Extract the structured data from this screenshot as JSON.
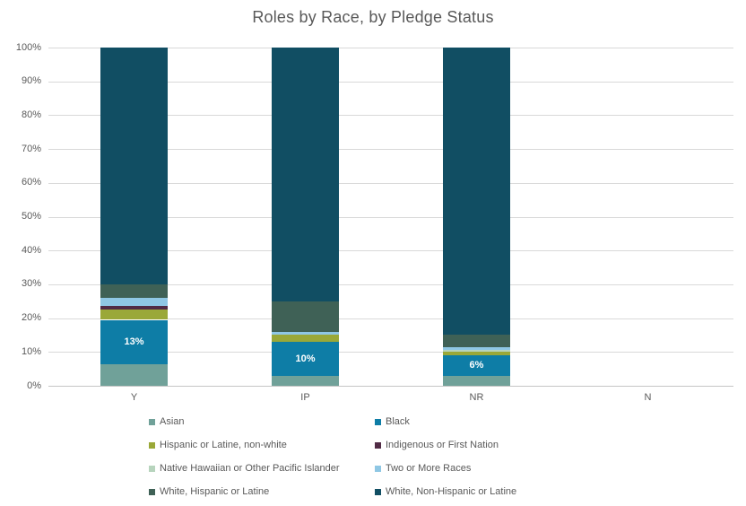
{
  "chart_data": {
    "type": "bar",
    "stacked": true,
    "percent_axis": true,
    "title": "Roles by Race, by Pledge Status",
    "xlabel": "",
    "ylabel": "",
    "categories": [
      "Y",
      "IP",
      "NR",
      "N"
    ],
    "y_axis": {
      "min": 0,
      "max": 100,
      "step": 10,
      "tick_labels": [
        "0%",
        "10%",
        "20%",
        "30%",
        "40%",
        "50%",
        "60%",
        "70%",
        "80%",
        "90%",
        "100%"
      ]
    },
    "gridlines": true,
    "legend_position": "bottom",
    "series": [
      {
        "name": "Asian",
        "color": "#70A199",
        "values": [
          6.5,
          3,
          3,
          0
        ]
      },
      {
        "name": "Black",
        "color": "#0E7DA6",
        "values": [
          13,
          10,
          6,
          0
        ],
        "data_labels": [
          "13%",
          "10%",
          "6%",
          ""
        ]
      },
      {
        "name": "Hispanic or Latine, non-white",
        "color": "#9AA838",
        "values": [
          3,
          2,
          1,
          0
        ]
      },
      {
        "name": "Indigenous or First Nation",
        "color": "#512B45",
        "values": [
          1,
          0,
          0,
          0
        ]
      },
      {
        "name": "Native Hawaiian or Other Pacific Islander",
        "color": "#B7D4BD",
        "values": [
          0,
          0,
          0.5,
          0
        ]
      },
      {
        "name": "Two or More Races",
        "color": "#8FC7E4",
        "values": [
          2.5,
          1,
          1,
          0
        ]
      },
      {
        "name": "White, Hispanic or Latine",
        "color": "#3F6156",
        "values": [
          4,
          9,
          3.5,
          0
        ]
      },
      {
        "name": "White, Non-Hispanic or Latine",
        "color": "#114E63",
        "values": [
          70,
          75,
          85,
          0
        ]
      }
    ]
  },
  "styles": {
    "text_color": "#595959",
    "gridline_color": "#d9d9d9",
    "background": "#ffffff"
  }
}
